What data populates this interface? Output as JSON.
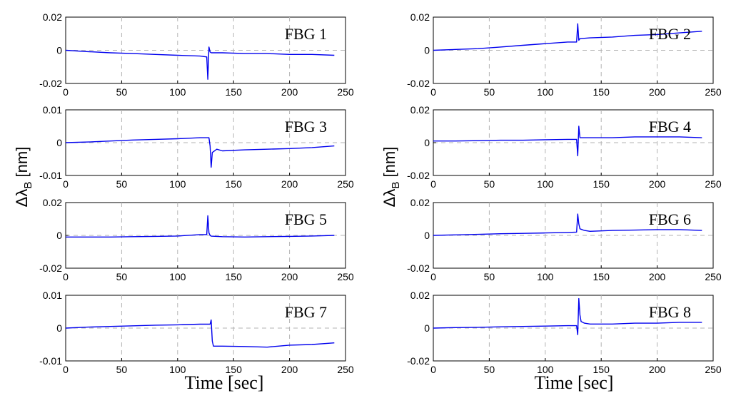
{
  "figure": {
    "xlabel": "Time [sec]",
    "ylabel_main": "Δλ",
    "ylabel_sub": "B",
    "ylabel_unit": " [nm]"
  },
  "colors": {
    "line": "#0000ee",
    "grid": "#b3b3b3",
    "axes": "#000000"
  },
  "chart_data": [
    {
      "type": "line",
      "title": "FBG 1",
      "xlim": [
        0,
        250
      ],
      "ylim": [
        -0.02,
        0.02
      ],
      "xticks": [
        0,
        50,
        100,
        150,
        200,
        250
      ],
      "yticks": [
        0.02,
        0,
        -0.02
      ],
      "ytick_labels": [
        "0.02",
        "0",
        "-0.02"
      ],
      "grid": "dashed",
      "series": [
        {
          "name": "FBG 1",
          "x": [
            0,
            20,
            40,
            60,
            80,
            100,
            120,
            126,
            127,
            128,
            129,
            130,
            140,
            160,
            180,
            200,
            220,
            240
          ],
          "y": [
            0,
            -0.0008,
            -0.0015,
            -0.002,
            -0.0025,
            -0.003,
            -0.0035,
            -0.004,
            -0.0175,
            0.002,
            -0.001,
            -0.0015,
            -0.0015,
            -0.002,
            -0.002,
            -0.0025,
            -0.0025,
            -0.003
          ]
        }
      ]
    },
    {
      "type": "line",
      "title": "FBG 2",
      "xlim": [
        0,
        250
      ],
      "ylim": [
        -0.02,
        0.02
      ],
      "xticks": [
        0,
        50,
        100,
        150,
        200,
        250
      ],
      "yticks": [
        0.02,
        0,
        -0.02
      ],
      "ytick_labels": [
        "0.02",
        "0",
        "-0.02"
      ],
      "grid": "dashed",
      "series": [
        {
          "name": "FBG 2",
          "x": [
            0,
            20,
            40,
            60,
            80,
            100,
            120,
            128,
            129,
            130,
            131,
            140,
            160,
            180,
            200,
            220,
            240
          ],
          "y": [
            0,
            0.0005,
            0.001,
            0.002,
            0.003,
            0.004,
            0.005,
            0.005,
            0.016,
            0.006,
            0.007,
            0.0075,
            0.008,
            0.009,
            0.0095,
            0.0105,
            0.0115
          ]
        }
      ]
    },
    {
      "type": "line",
      "title": "FBG 3",
      "xlim": [
        0,
        250
      ],
      "ylim": [
        -0.01,
        0.01
      ],
      "xticks": [
        0,
        50,
        100,
        150,
        200,
        250
      ],
      "yticks": [
        0.01,
        0,
        -0.01
      ],
      "ytick_labels": [
        "0.01",
        "0",
        "-0.01"
      ],
      "grid": "dashed",
      "series": [
        {
          "name": "FBG 3",
          "x": [
            0,
            20,
            40,
            60,
            80,
            100,
            120,
            128,
            129,
            130,
            131,
            135,
            140,
            160,
            180,
            200,
            220,
            240
          ],
          "y": [
            0,
            0.0002,
            0.0005,
            0.0008,
            0.001,
            0.0012,
            0.0015,
            0.0015,
            -0.001,
            -0.0075,
            -0.003,
            -0.002,
            -0.0025,
            -0.0022,
            -0.002,
            -0.0018,
            -0.0015,
            -0.001
          ]
        }
      ]
    },
    {
      "type": "line",
      "title": "FBG 4",
      "xlim": [
        0,
        250
      ],
      "ylim": [
        -0.02,
        0.02
      ],
      "xticks": [
        0,
        50,
        100,
        150,
        200,
        250
      ],
      "yticks": [
        0.02,
        0,
        -0.02
      ],
      "ytick_labels": [
        "0.02",
        "0",
        "-0.02"
      ],
      "grid": "dashed",
      "series": [
        {
          "name": "FBG 4",
          "x": [
            0,
            20,
            40,
            60,
            80,
            100,
            120,
            128,
            129,
            130,
            131,
            140,
            160,
            180,
            200,
            220,
            240
          ],
          "y": [
            0.001,
            0.001,
            0.0012,
            0.0015,
            0.0015,
            0.0018,
            0.002,
            0.002,
            -0.008,
            0.01,
            0.003,
            0.003,
            0.003,
            0.0035,
            0.0035,
            0.0035,
            0.003
          ]
        }
      ]
    },
    {
      "type": "line",
      "title": "FBG 5",
      "xlim": [
        0,
        250
      ],
      "ylim": [
        -0.02,
        0.02
      ],
      "xticks": [
        0,
        50,
        100,
        150,
        200,
        250
      ],
      "yticks": [
        0.02,
        0,
        -0.02
      ],
      "ytick_labels": [
        "0.02",
        "0",
        "-0.02"
      ],
      "grid": "dashed",
      "series": [
        {
          "name": "FBG 5",
          "x": [
            0,
            20,
            40,
            60,
            80,
            100,
            120,
            126,
            127,
            128,
            129,
            130,
            140,
            160,
            180,
            200,
            220,
            240
          ],
          "y": [
            -0.001,
            -0.001,
            -0.001,
            -0.0008,
            -0.0006,
            -0.0004,
            0.0005,
            0.0005,
            0.012,
            0.0015,
            0,
            -0.0005,
            -0.0008,
            -0.001,
            -0.0008,
            -0.0006,
            -0.0004,
            0
          ]
        }
      ]
    },
    {
      "type": "line",
      "title": "FBG 6",
      "xlim": [
        0,
        250
      ],
      "ylim": [
        -0.02,
        0.02
      ],
      "xticks": [
        0,
        50,
        100,
        150,
        200,
        250
      ],
      "yticks": [
        0.02,
        0,
        -0.02
      ],
      "ytick_labels": [
        "0.02",
        "0",
        "-0.02"
      ],
      "grid": "dashed",
      "series": [
        {
          "name": "FBG 6",
          "x": [
            0,
            20,
            40,
            60,
            80,
            100,
            120,
            128,
            129,
            130,
            131,
            135,
            140,
            160,
            180,
            200,
            220,
            240
          ],
          "y": [
            0,
            0.0003,
            0.0006,
            0.001,
            0.0012,
            0.0015,
            0.0018,
            0.002,
            0.013,
            0.007,
            0.004,
            0.003,
            0.0025,
            0.003,
            0.0032,
            0.0035,
            0.0035,
            0.003
          ]
        }
      ]
    },
    {
      "type": "line",
      "title": "FBG 7",
      "xlim": [
        0,
        250
      ],
      "ylim": [
        -0.01,
        0.01
      ],
      "xticks": [
        0,
        50,
        100,
        150,
        200,
        250
      ],
      "yticks": [
        0.01,
        0,
        -0.01
      ],
      "ytick_labels": [
        "0.01",
        "0",
        "-0.01"
      ],
      "grid": "dashed",
      "series": [
        {
          "name": "FBG 7",
          "x": [
            0,
            20,
            40,
            60,
            80,
            100,
            120,
            129,
            130,
            131,
            132,
            140,
            160,
            180,
            200,
            220,
            240
          ],
          "y": [
            0,
            0.0003,
            0.0005,
            0.0007,
            0.0009,
            0.001,
            0.0012,
            0.0012,
            0.0025,
            -0.004,
            -0.0055,
            -0.0055,
            -0.0056,
            -0.0058,
            -0.0052,
            -0.005,
            -0.0045
          ]
        }
      ]
    },
    {
      "type": "line",
      "title": "FBG 8",
      "xlim": [
        0,
        250
      ],
      "ylim": [
        -0.02,
        0.02
      ],
      "xticks": [
        0,
        50,
        100,
        150,
        200,
        250
      ],
      "yticks": [
        0.02,
        0,
        -0.02
      ],
      "ytick_labels": [
        "0.02",
        "0",
        "-0.02"
      ],
      "grid": "dashed",
      "series": [
        {
          "name": "FBG 8",
          "x": [
            0,
            20,
            40,
            60,
            80,
            100,
            120,
            128,
            129,
            130,
            131,
            132,
            135,
            140,
            160,
            180,
            200,
            220,
            240
          ],
          "y": [
            0,
            0.0003,
            0.0005,
            0.0008,
            0.001,
            0.0012,
            0.0015,
            0.0015,
            -0.004,
            0.018,
            0.008,
            0.004,
            0.003,
            0.0025,
            0.0025,
            0.003,
            0.003,
            0.0035,
            0.0035
          ]
        }
      ]
    }
  ]
}
